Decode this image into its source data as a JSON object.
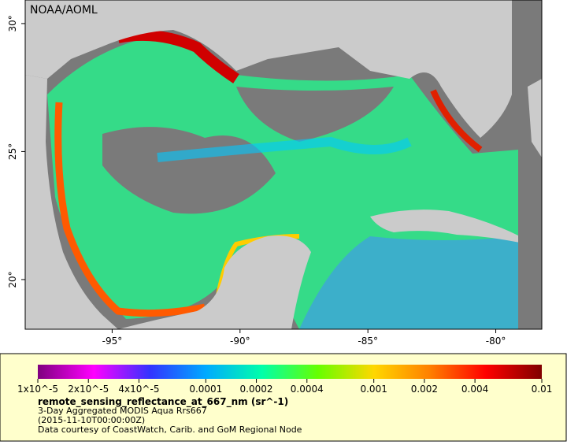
{
  "map": {
    "title": "NOAA/AOML",
    "lonlim": [
      -98.4,
      -78.2
    ],
    "latlim": [
      18.06,
      30.92
    ],
    "lon_ticks": [
      {
        "value": -95,
        "label": "-95°"
      },
      {
        "value": -90,
        "label": "-90°"
      },
      {
        "value": -85,
        "label": "-85°"
      },
      {
        "value": -80,
        "label": "-80°"
      }
    ],
    "lat_ticks": [
      {
        "value": 20,
        "label": "20°"
      },
      {
        "value": 25,
        "label": "25°"
      },
      {
        "value": 30,
        "label": "30°"
      }
    ]
  },
  "legend": {
    "colorbar_range": [
      1e-05,
      0.01
    ],
    "log_scale": true,
    "colors": [
      "#7f007f",
      "#ff00ff",
      "#3333ff",
      "#00aaff",
      "#00ffaa",
      "#66ff00",
      "#ffd700",
      "#ff8000",
      "#ff0000",
      "#800000"
    ],
    "ticks": [
      {
        "value": 1e-05,
        "label": "1x10^-5"
      },
      {
        "value": 2e-05,
        "label": "2x10^-5"
      },
      {
        "value": 4e-05,
        "label": "4x10^-5"
      },
      {
        "value": 0.0001,
        "label": "0.0001"
      },
      {
        "value": 0.0002,
        "label": "0.0002"
      },
      {
        "value": 0.0004,
        "label": "0.0004"
      },
      {
        "value": 0.001,
        "label": "0.001"
      },
      {
        "value": 0.002,
        "label": "0.002"
      },
      {
        "value": 0.004,
        "label": "0.004"
      },
      {
        "value": 0.01,
        "label": "0.01"
      }
    ],
    "variable": "remote_sensing_reflectance_at_667_nm (sr^-1)",
    "dataset": "3-Day Aggregated MODIS Aqua Rrs667",
    "time": "(2015-11-10T00:00:00Z)",
    "credit": "Data courtesy of CoastWatch, Carib. and GoM Regional Node"
  }
}
